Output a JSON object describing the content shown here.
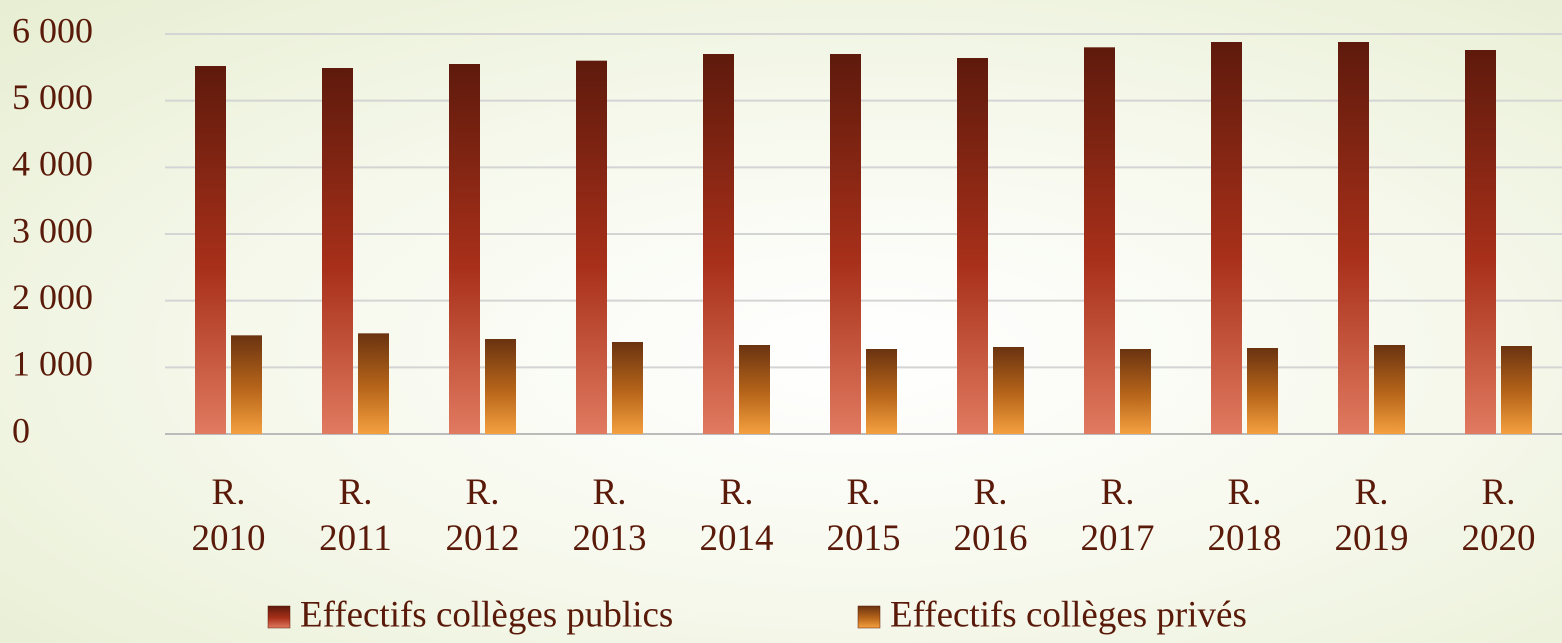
{
  "chart_data": {
    "type": "bar",
    "categories": [
      "R. 2010",
      "R. 2011",
      "R. 2012",
      "R. 2013",
      "R. 2014",
      "R. 2015",
      "R. 2016",
      "R. 2017",
      "R. 2018",
      "R. 2019",
      "R. 2020"
    ],
    "series": [
      {
        "name": "Effectifs collèges publics",
        "color": "#a8301a",
        "values": [
          5520,
          5490,
          5550,
          5600,
          5700,
          5700,
          5640,
          5800,
          5880,
          5880,
          5760
        ]
      },
      {
        "name": "Effectifs collèges privés",
        "color": "#b8661a",
        "values": [
          1480,
          1510,
          1425,
          1380,
          1335,
          1275,
          1305,
          1275,
          1290,
          1335,
          1320
        ]
      }
    ],
    "ylim": [
      0,
      6000
    ],
    "yticks": [
      0,
      {
        "value": 1000,
        "label": "1 000"
      },
      {
        "value": 2000,
        "label": "2 000"
      },
      {
        "value": 3000,
        "label": "3 000"
      },
      {
        "value": 4000,
        "label": "4 000"
      },
      {
        "value": 5000,
        "label": "5 000"
      },
      {
        "value": 6000,
        "label": "6 000"
      }
    ],
    "grid": true
  }
}
